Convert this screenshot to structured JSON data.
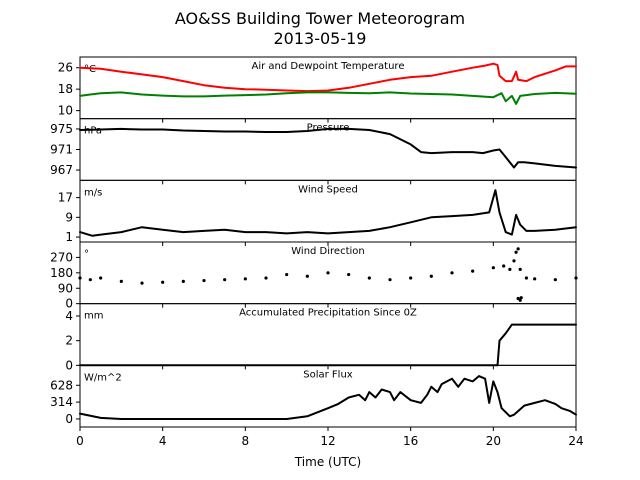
{
  "chart_data": {
    "title": "AO&SS Building Tower Meteorogram",
    "subtitle": "2013-05-19",
    "xlabel": "Time (UTC)",
    "xlim": [
      0,
      24
    ],
    "xticks": [
      "0",
      "4",
      "8",
      "12",
      "16",
      "20",
      "24"
    ],
    "panels": [
      {
        "id": "temp",
        "type": "line",
        "title": "Air and Dewpoint Temperature",
        "unit": "°C",
        "ylim": [
          7,
          30
        ],
        "yticks": [
          "26",
          "18",
          "10"
        ],
        "series": [
          {
            "color": "#ff0000",
            "points": [
              [
                0,
                26
              ],
              [
                1,
                25.6
              ],
              [
                2,
                24.5
              ],
              [
                3,
                23.5
              ],
              [
                4,
                22.5
              ],
              [
                5,
                21
              ],
              [
                6,
                19.5
              ],
              [
                7,
                18.5
              ],
              [
                8,
                18
              ],
              [
                9,
                17.8
              ],
              [
                10,
                17.5
              ],
              [
                11,
                17.3
              ],
              [
                12,
                17.5
              ],
              [
                13,
                18.5
              ],
              [
                14,
                20
              ],
              [
                15,
                21.5
              ],
              [
                16,
                22.5
              ],
              [
                17,
                23
              ],
              [
                18,
                24.5
              ],
              [
                19,
                26
              ],
              [
                19.6,
                26.8
              ],
              [
                20,
                27.5
              ],
              [
                20.2,
                27
              ],
              [
                20.3,
                23
              ],
              [
                20.6,
                21
              ],
              [
                20.9,
                21
              ],
              [
                21.1,
                24.5
              ],
              [
                21.2,
                21.5
              ],
              [
                21.6,
                21
              ],
              [
                22,
                22.5
              ],
              [
                23,
                25
              ],
              [
                23.5,
                26.5
              ],
              [
                24,
                26.5
              ]
            ]
          },
          {
            "color": "#008000",
            "points": [
              [
                0,
                15.5
              ],
              [
                0.5,
                16
              ],
              [
                1,
                16.5
              ],
              [
                2,
                16.8
              ],
              [
                3,
                16
              ],
              [
                4,
                15.6
              ],
              [
                5,
                15.3
              ],
              [
                6,
                15.3
              ],
              [
                7,
                15.6
              ],
              [
                8,
                15.8
              ],
              [
                9,
                16
              ],
              [
                10,
                16.5
              ],
              [
                11,
                16.8
              ],
              [
                12,
                16.8
              ],
              [
                13,
                16.6
              ],
              [
                14,
                16.5
              ],
              [
                15,
                16.8
              ],
              [
                16,
                16.4
              ],
              [
                17,
                16.2
              ],
              [
                18,
                16
              ],
              [
                19,
                15.5
              ],
              [
                20,
                15
              ],
              [
                20.4,
                16.5
              ],
              [
                20.6,
                13.5
              ],
              [
                20.9,
                15.5
              ],
              [
                21.1,
                12.5
              ],
              [
                21.3,
                15.5
              ],
              [
                22,
                16.2
              ],
              [
                23,
                16.6
              ],
              [
                24,
                16.3
              ]
            ]
          }
        ]
      },
      {
        "id": "pressure",
        "type": "line",
        "title": "Pressure",
        "unit": "hPa",
        "ylim": [
          965,
          977
        ],
        "yticks": [
          "975",
          "971",
          "967"
        ],
        "series": [
          {
            "color": "#000000",
            "points": [
              [
                0,
                974.8
              ],
              [
                1,
                974.9
              ],
              [
                2,
                975
              ],
              [
                3,
                974.9
              ],
              [
                4,
                974.9
              ],
              [
                5,
                974.7
              ],
              [
                6,
                974.6
              ],
              [
                7,
                974.5
              ],
              [
                8,
                974.5
              ],
              [
                9,
                974.4
              ],
              [
                10,
                974.4
              ],
              [
                11,
                974.6
              ],
              [
                12,
                975
              ],
              [
                13,
                975
              ],
              [
                14,
                974.8
              ],
              [
                15,
                974
              ],
              [
                16,
                972
              ],
              [
                16.5,
                970.5
              ],
              [
                17,
                970.3
              ],
              [
                18,
                970.5
              ],
              [
                19,
                970.5
              ],
              [
                19.5,
                970.3
              ],
              [
                20,
                970.8
              ],
              [
                20.3,
                971
              ],
              [
                20.5,
                970
              ],
              [
                21,
                967.5
              ],
              [
                21.2,
                968.5
              ],
              [
                21.5,
                968.5
              ],
              [
                22,
                968.3
              ],
              [
                23,
                967.8
              ],
              [
                24,
                967.5
              ]
            ]
          }
        ]
      },
      {
        "id": "wind_speed",
        "type": "line",
        "title": "Wind Speed",
        "unit": "m/s",
        "ylim": [
          -1,
          24
        ],
        "yticks": [
          "17",
          "9",
          "1"
        ],
        "series": [
          {
            "color": "#000000",
            "points": [
              [
                0,
                3
              ],
              [
                0.6,
                1.5
              ],
              [
                1,
                2
              ],
              [
                2,
                3
              ],
              [
                3,
                5
              ],
              [
                4,
                4
              ],
              [
                5,
                3
              ],
              [
                6,
                3.5
              ],
              [
                7,
                4
              ],
              [
                8,
                3
              ],
              [
                9,
                3
              ],
              [
                10,
                2.5
              ],
              [
                11,
                3
              ],
              [
                12,
                2.5
              ],
              [
                13,
                3
              ],
              [
                14,
                3.5
              ],
              [
                15,
                5
              ],
              [
                16,
                7
              ],
              [
                17,
                9
              ],
              [
                18,
                9.5
              ],
              [
                19,
                10
              ],
              [
                19.8,
                11
              ],
              [
                20.1,
                20
              ],
              [
                20.3,
                11
              ],
              [
                20.6,
                3
              ],
              [
                20.9,
                2
              ],
              [
                21.1,
                10
              ],
              [
                21.3,
                6
              ],
              [
                21.6,
                3.5
              ],
              [
                22,
                3.5
              ],
              [
                23,
                4
              ],
              [
                24,
                5
              ]
            ]
          }
        ]
      },
      {
        "id": "wind_direction",
        "type": "scatter",
        "title": "Wind Direction",
        "unit": "°",
        "ylim": [
          0,
          360
        ],
        "yticks": [
          "270",
          "180",
          "90",
          "0"
        ],
        "series": [
          {
            "color": "#000000",
            "points": [
              [
                0,
                150
              ],
              [
                0.5,
                140
              ],
              [
                1,
                150
              ],
              [
                2,
                130
              ],
              [
                3,
                120
              ],
              [
                4,
                125
              ],
              [
                5,
                130
              ],
              [
                6,
                135
              ],
              [
                7,
                140
              ],
              [
                8,
                145
              ],
              [
                9,
                150
              ],
              [
                10,
                170
              ],
              [
                11,
                160
              ],
              [
                12,
                180
              ],
              [
                13,
                170
              ],
              [
                14,
                150
              ],
              [
                15,
                140
              ],
              [
                16,
                150
              ],
              [
                17,
                160
              ],
              [
                18,
                180
              ],
              [
                19,
                190
              ],
              [
                20,
                210
              ],
              [
                20.5,
                220
              ],
              [
                20.8,
                200
              ],
              [
                21,
                250
              ],
              [
                21.1,
                300
              ],
              [
                21.2,
                320
              ],
              [
                21.3,
                200
              ],
              [
                21.6,
                150
              ],
              [
                22,
                145
              ],
              [
                23,
                140
              ],
              [
                24,
                150
              ]
            ]
          },
          {
            "color": "#000000",
            "points": [
              [
                21.2,
                30
              ],
              [
                21.3,
                20
              ],
              [
                21.35,
                35
              ]
            ]
          }
        ]
      },
      {
        "id": "precip",
        "type": "line",
        "title": "Accumulated Precipitation Since 0Z",
        "unit": "mm",
        "ylim": [
          0,
          5
        ],
        "yticks": [
          "4",
          "2",
          "0"
        ],
        "series": [
          {
            "color": "#000000",
            "points": [
              [
                0,
                0
              ],
              [
                20.2,
                0
              ],
              [
                20.3,
                2
              ],
              [
                20.6,
                2.6
              ],
              [
                20.9,
                3.3
              ],
              [
                24,
                3.3
              ]
            ]
          }
        ]
      },
      {
        "id": "solar",
        "type": "line",
        "title": "Solar Flux",
        "unit": "W/m^2",
        "ylim": [
          -150,
          1000
        ],
        "yticks": [
          "628",
          "314",
          "0"
        ],
        "series": [
          {
            "color": "#000000",
            "points": [
              [
                0,
                100
              ],
              [
                1,
                20
              ],
              [
                2,
                0
              ],
              [
                3,
                0
              ],
              [
                4,
                0
              ],
              [
                5,
                0
              ],
              [
                6,
                0
              ],
              [
                7,
                0
              ],
              [
                8,
                0
              ],
              [
                9,
                0
              ],
              [
                10,
                0
              ],
              [
                11,
                50
              ],
              [
                12,
                200
              ],
              [
                12.5,
                280
              ],
              [
                13,
                400
              ],
              [
                13.5,
                450
              ],
              [
                13.8,
                350
              ],
              [
                14,
                500
              ],
              [
                14.3,
                400
              ],
              [
                14.6,
                550
              ],
              [
                15,
                500
              ],
              [
                15.2,
                350
              ],
              [
                15.5,
                500
              ],
              [
                16,
                350
              ],
              [
                16.5,
                300
              ],
              [
                16.8,
                450
              ],
              [
                17,
                600
              ],
              [
                17.3,
                500
              ],
              [
                17.5,
                650
              ],
              [
                18,
                750
              ],
              [
                18.3,
                600
              ],
              [
                18.6,
                750
              ],
              [
                19,
                700
              ],
              [
                19.3,
                800
              ],
              [
                19.6,
                750
              ],
              [
                19.8,
                300
              ],
              [
                20,
                700
              ],
              [
                20.2,
                500
              ],
              [
                20.4,
                200
              ],
              [
                20.8,
                50
              ],
              [
                21,
                80
              ],
              [
                21.5,
                250
              ],
              [
                22,
                300
              ],
              [
                22.5,
                350
              ],
              [
                23,
                280
              ],
              [
                23.3,
                200
              ],
              [
                23.7,
                150
              ],
              [
                24,
                80
              ]
            ]
          }
        ]
      }
    ]
  }
}
